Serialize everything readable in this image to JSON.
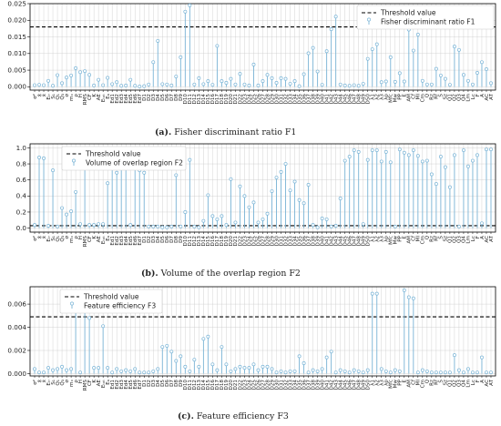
{
  "categories": [
    "σ²",
    "x̄",
    "x̃",
    "Eₜᵣ",
    "S₁",
    "Q₁",
    "Q₃",
    "σ",
    "mₓ",
    "ρ",
    "H",
    "RMS",
    "CF",
    "K",
    "AE",
    "Eₜₒₜ",
    "Eₐ",
    "Ed1",
    "Ed2",
    "Ed3",
    "Ed4",
    "Ed5",
    "Ed6",
    "Ed7",
    "D1",
    "D2",
    "D3",
    "D4",
    "D5",
    "D6",
    "D7",
    "D8",
    "D9",
    "D10",
    "D11",
    "D12",
    "D13",
    "D14",
    "D15",
    "D16",
    "D17",
    "D18",
    "D19",
    "D20",
    "D21",
    "D22",
    "D23",
    "D24",
    "D25",
    "D26",
    "D27",
    "D28",
    "D29",
    "D30",
    "D31",
    "D32",
    "D33",
    "D34",
    "D35",
    "D36",
    "D37",
    "D38",
    "D39",
    "D40",
    "D41",
    "D42",
    "D43",
    "D44",
    "D45",
    "D46",
    "D47",
    "D48",
    "D49",
    "D50",
    "λ1",
    "λ2",
    "λ3",
    "λp",
    "Mfc",
    "Mw",
    "PP",
    "E",
    "AM",
    "Cf",
    "MI",
    "Cm",
    "Q",
    "Rz",
    "Rf",
    "S",
    "Sz",
    "Q1",
    "Q2",
    "Q3",
    "Q4",
    "Lm",
    "Lc",
    "F",
    "A",
    "AC",
    "AT"
  ],
  "chart_data": [
    {
      "type": "stem",
      "legend": {
        "threshold": "Threshold value",
        "series": "Fisher discriminant ratio F1",
        "position": "top-right"
      },
      "threshold": 0.018,
      "ylim": [
        -0.001,
        0.025
      ],
      "yticks": [
        "0.000",
        "0.005",
        "0.010",
        "0.015",
        "0.020",
        "0.025"
      ],
      "values": [
        0.0005,
        0.0006,
        0.0005,
        0.0018,
        0.0003,
        0.0035,
        0.0011,
        0.0028,
        0.0034,
        0.0056,
        0.0044,
        0.0047,
        0.0036,
        0.0004,
        0.0021,
        0.0005,
        0.0027,
        0.0008,
        0.0014,
        0.0003,
        0.0004,
        0.0021,
        0.0003,
        0.0001,
        0.0002,
        0.0007,
        0.0074,
        0.0138,
        0.0008,
        0.0007,
        0.0004,
        0.0031,
        0.0089,
        0.0226,
        0.0245,
        0.0007,
        0.0026,
        0.0008,
        0.0017,
        0.0006,
        0.0123,
        0.0017,
        0.0012,
        0.0024,
        0.0007,
        0.0039,
        0.0007,
        0.0004,
        0.0067,
        0.0004,
        0.0017,
        0.0036,
        0.0026,
        0.0012,
        0.0026,
        0.0024,
        0.0009,
        0.0017,
        0.0002,
        0.0038,
        0.0101,
        0.0117,
        0.0046,
        0.0006,
        0.0107,
        0.0173,
        0.0211,
        0.0007,
        0.0004,
        0.0003,
        0.0005,
        0.0003,
        0.0009,
        0.0084,
        0.0113,
        0.0128,
        0.0014,
        0.0016,
        0.0089,
        0.0015,
        0.0041,
        0.0016,
        0.0172,
        0.0109,
        0.0157,
        0.0018,
        0.0007,
        0.0007,
        0.0054,
        0.0034,
        0.0024,
        0.0006,
        0.0121,
        0.0111,
        0.0036,
        0.0018,
        0.0007,
        0.0042,
        0.0074,
        0.0053,
        0.0011
      ]
    },
    {
      "type": "stem",
      "legend": {
        "threshold": "Threshold value",
        "series": "Volume of overlap region F2",
        "position": "top-left"
      },
      "threshold": 0.03,
      "ylim": [
        -0.05,
        1.05
      ],
      "yticks": [
        "0.0",
        "0.2",
        "0.4",
        "0.6",
        "0.8",
        "1.0"
      ],
      "values": [
        0.04,
        0.88,
        0.87,
        0.03,
        0.72,
        0.02,
        0.25,
        0.17,
        0.21,
        0.45,
        0.05,
        0.93,
        0.04,
        0.04,
        0.05,
        0.05,
        0.56,
        0.84,
        0.69,
        0.87,
        0.96,
        0.04,
        0.95,
        0.72,
        0.69,
        0.02,
        0.02,
        0.02,
        0.01,
        0.01,
        0.02,
        0.66,
        0.02,
        0.2,
        0.85,
        0.02,
        0.01,
        0.09,
        0.41,
        0.15,
        0.11,
        0.15,
        0.04,
        0.61,
        0.07,
        0.52,
        0.4,
        0.26,
        0.32,
        0.07,
        0.11,
        0.18,
        0.46,
        0.63,
        0.7,
        0.8,
        0.47,
        0.58,
        0.35,
        0.31,
        0.54,
        0.04,
        0.01,
        0.12,
        0.11,
        0.02,
        0.03,
        0.37,
        0.84,
        0.89,
        0.97,
        0.95,
        0.05,
        0.85,
        0.97,
        0.97,
        0.83,
        0.95,
        0.82,
        0.02,
        0.98,
        0.94,
        0.91,
        0.97,
        0.9,
        0.83,
        0.84,
        0.67,
        0.55,
        0.89,
        0.76,
        0.51,
        0.91,
        0.02,
        0.97,
        0.77,
        0.84,
        0.91,
        0.06,
        0.98,
        0.98
      ]
    },
    {
      "type": "stem",
      "legend": {
        "threshold": "Threshold value",
        "series": "Feature efficiency F3",
        "position": "top-left"
      },
      "threshold": 0.0049,
      "ylim": [
        -0.0002,
        0.0075
      ],
      "yticks": [
        "0.000",
        "0.002",
        "0.004",
        "0.006"
      ],
      "values": [
        0.0004,
        0.0001,
        0.0001,
        0.0005,
        0.0003,
        0.0004,
        0.0006,
        0.0003,
        0.0004,
        0.0058,
        0.0001,
        0.0071,
        0.0048,
        0.0005,
        0.0005,
        0.0041,
        0.0005,
        0.0001,
        0.0004,
        0.0002,
        0.0003,
        0.0002,
        0.0004,
        0.0001,
        0.0001,
        0.0001,
        0.0002,
        0.0004,
        0.0023,
        0.0024,
        0.0019,
        0.0011,
        0.0015,
        0.0006,
        0.0002,
        0.0012,
        0.0006,
        0.003,
        0.0032,
        0.0008,
        0.0003,
        0.0023,
        0.0008,
        0.0002,
        0.0004,
        0.0006,
        0.0005,
        0.0005,
        0.0008,
        0.0003,
        0.0006,
        0.0006,
        0.0004,
        0.0001,
        0.0002,
        0.0001,
        0.0002,
        0.0002,
        0.0015,
        0.0009,
        0.0001,
        0.0003,
        0.0002,
        0.0004,
        0.0014,
        0.0019,
        0.0001,
        0.0003,
        0.0002,
        0.0001,
        0.0003,
        0.0002,
        0.0001,
        0.0003,
        0.0069,
        0.0069,
        0.0004,
        0.0002,
        0.0001,
        0.0003,
        0.0002,
        0.0072,
        0.0066,
        0.0065,
        0.0001,
        0.0003,
        0.0002,
        0.0001,
        0.0001,
        0.0001,
        0.0001,
        0.0001,
        0.0016,
        0.0003,
        0.0001,
        0.0004,
        0.0001,
        0.0001,
        0.0014,
        0.0001,
        0.0001
      ]
    }
  ],
  "captions": {
    "a_label": "(a).",
    "a_text": " Fisher discriminant ratio F1",
    "b_label": "(b).",
    "b_text": " Volume of the overlap region F2",
    "c_label": "(c).",
    "c_text": " Feature efficiency F3"
  },
  "colors": {
    "stem": "#7ab4d6",
    "threshold": "#000000",
    "axis": "#000000",
    "grid": "#c8c8c8"
  }
}
